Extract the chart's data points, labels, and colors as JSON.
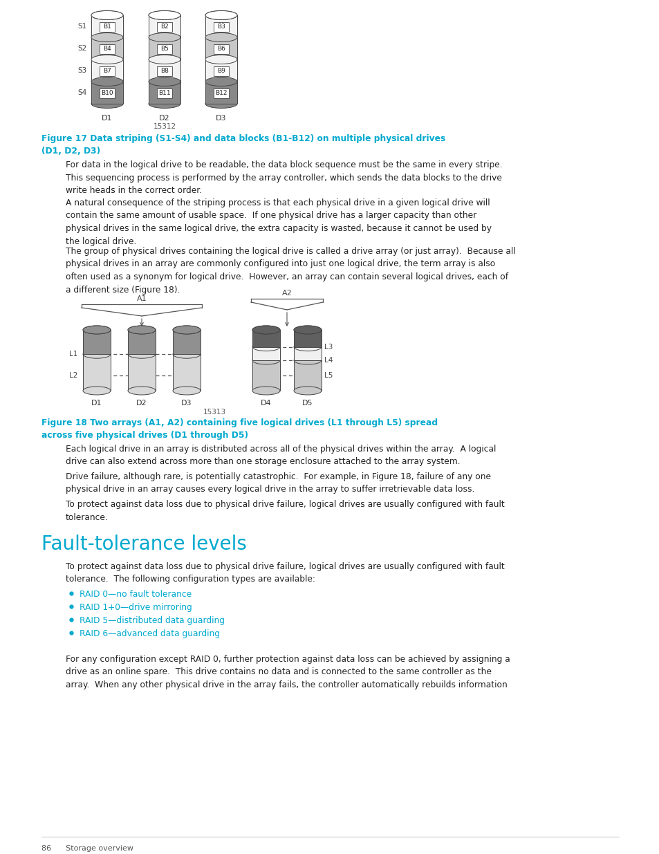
{
  "page_bg": "#ffffff",
  "text_color": "#222222",
  "cyan_color": "#00a9ce",
  "body_font_size": 8.8,
  "cap_font_size": 8.8,
  "heading_font_size": 20,
  "fig17_caption": "Figure 17 Data striping (S1-S4) and data blocks (B1-B12) on multiple physical drives\n(D1, D2, D3)",
  "fig18_caption": "Figure 18 Two arrays (A1, A2) containing five logical drives (L1 through L5) spread\nacross five physical drives (D1 through D5)",
  "section_heading": "Fault-tolerance levels",
  "para1": "For data in the logical drive to be readable, the data block sequence must be the same in every stripe.\nThis sequencing process is performed by the array controller, which sends the data blocks to the drive\nwrite heads in the correct order.",
  "para2": "A natural consequence of the striping process is that each physical drive in a given logical drive will\ncontain the same amount of usable space.  If one physical drive has a larger capacity than other\nphysical drives in the same logical drive, the extra capacity is wasted, because it cannot be used by\nthe logical drive.",
  "para3": "The group of physical drives containing the logical drive is called a drive array (or just array).  Because all\nphysical drives in an array are commonly configured into just one logical drive, the term array is also\noften used as a synonym for logical drive.  However, an array can contain several logical drives, each of\na different size (Figure 18).",
  "para4": "Each logical drive in an array is distributed across all of the physical drives within the array.  A logical\ndrive can also extend across more than one storage enclosure attached to the array system.",
  "para5": "Drive failure, although rare, is potentially catastrophic.  For example, in Figure 18, failure of any one\nphysical drive in an array causes every logical drive in the array to suffer irretrievable data loss.",
  "para6": "To protect against data loss due to physical drive failure, logical drives are usually configured with fault\ntolerance.",
  "section_para": "To protect against data loss due to physical drive failure, logical drives are usually configured with fault\ntolerance.  The following configuration types are available:",
  "bullet_items": [
    "RAID 0—no fault tolerance",
    "RAID 1+0—drive mirroring",
    "RAID 5—distributed data guarding",
    "RAID 6—advanced data guarding"
  ],
  "para_after_bullets": "For any configuration except RAID 0, further protection against data loss can be achieved by assigning a\ndrive as an online spare.  This drive contains no data and is connected to the same controller as the\narray.  When any other physical drive in the array fails, the controller automatically rebuilds information",
  "footer_text": "86      Storage overview",
  "fig17_number": "15312",
  "fig18_number": "15313",
  "stripe_colors_fig17": [
    "#f2f2f2",
    "#c8c8c8",
    "#f2f2f2",
    "#888888"
  ],
  "block_labels_d1": [
    "B1",
    "B4",
    "B7",
    "B10"
  ],
  "block_labels_d2": [
    "B2",
    "B5",
    "B8",
    "B11"
  ],
  "block_labels_d3": [
    "B3",
    "B6",
    "B9",
    "B12"
  ],
  "stripe_labels": [
    "S1",
    "S2",
    "S3",
    "S4"
  ]
}
